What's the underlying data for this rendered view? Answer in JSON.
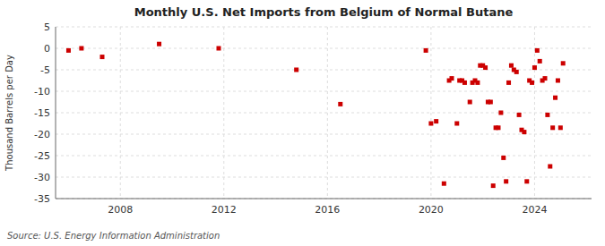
{
  "chart_data": {
    "type": "scatter",
    "title": "Monthly U.S. Net Imports from Belgium of Normal Butane",
    "ylabel": "Thousand Barrels per Day",
    "source": "Source: U.S. Energy Information Administration",
    "color": "#cc0000",
    "marker": "square",
    "grid": true,
    "xlim": [
      2005.5,
      2026.2
    ],
    "xticks": [
      2008,
      2012,
      2016,
      2020,
      2024
    ],
    "ylim": [
      -35,
      5
    ],
    "yticks": [
      5,
      0,
      -5,
      -10,
      -15,
      -20,
      -25,
      -30,
      -35
    ],
    "x": [
      2006.0,
      2006.5,
      2007.3,
      2009.5,
      2011.8,
      2014.8,
      2016.5,
      2019.8,
      2020.0,
      2020.2,
      2020.5,
      2020.7,
      2020.8,
      2021.0,
      2021.1,
      2021.2,
      2021.3,
      2021.5,
      2021.6,
      2021.7,
      2021.8,
      2021.9,
      2022.0,
      2022.1,
      2022.2,
      2022.3,
      2022.4,
      2022.5,
      2022.6,
      2022.7,
      2022.8,
      2022.9,
      2023.0,
      2023.1,
      2023.2,
      2023.3,
      2023.4,
      2023.5,
      2023.6,
      2023.7,
      2023.8,
      2023.9,
      2024.0,
      2024.1,
      2024.2,
      2024.3,
      2024.4,
      2024.5,
      2024.6,
      2024.7,
      2024.8,
      2024.9,
      2025.0,
      2025.1
    ],
    "values": [
      -0.5,
      0.0,
      -2.0,
      1.0,
      0.0,
      -5.0,
      -13.0,
      -0.5,
      -17.5,
      -17.0,
      -31.5,
      -7.5,
      -7.0,
      -17.5,
      -7.5,
      -7.5,
      -8.0,
      -12.5,
      -8.0,
      -7.5,
      -8.0,
      -4.0,
      -4.0,
      -4.5,
      -12.5,
      -12.5,
      -32.0,
      -18.5,
      -18.5,
      -15.0,
      -25.5,
      -31.0,
      -8.0,
      -4.0,
      -5.0,
      -5.5,
      -15.5,
      -19.0,
      -19.5,
      -31.0,
      -7.5,
      -8.0,
      -4.5,
      -0.5,
      -3.0,
      -7.5,
      -7.0,
      -15.5,
      -27.5,
      -18.5,
      -11.5,
      -7.5,
      -18.5,
      -3.5
    ]
  }
}
